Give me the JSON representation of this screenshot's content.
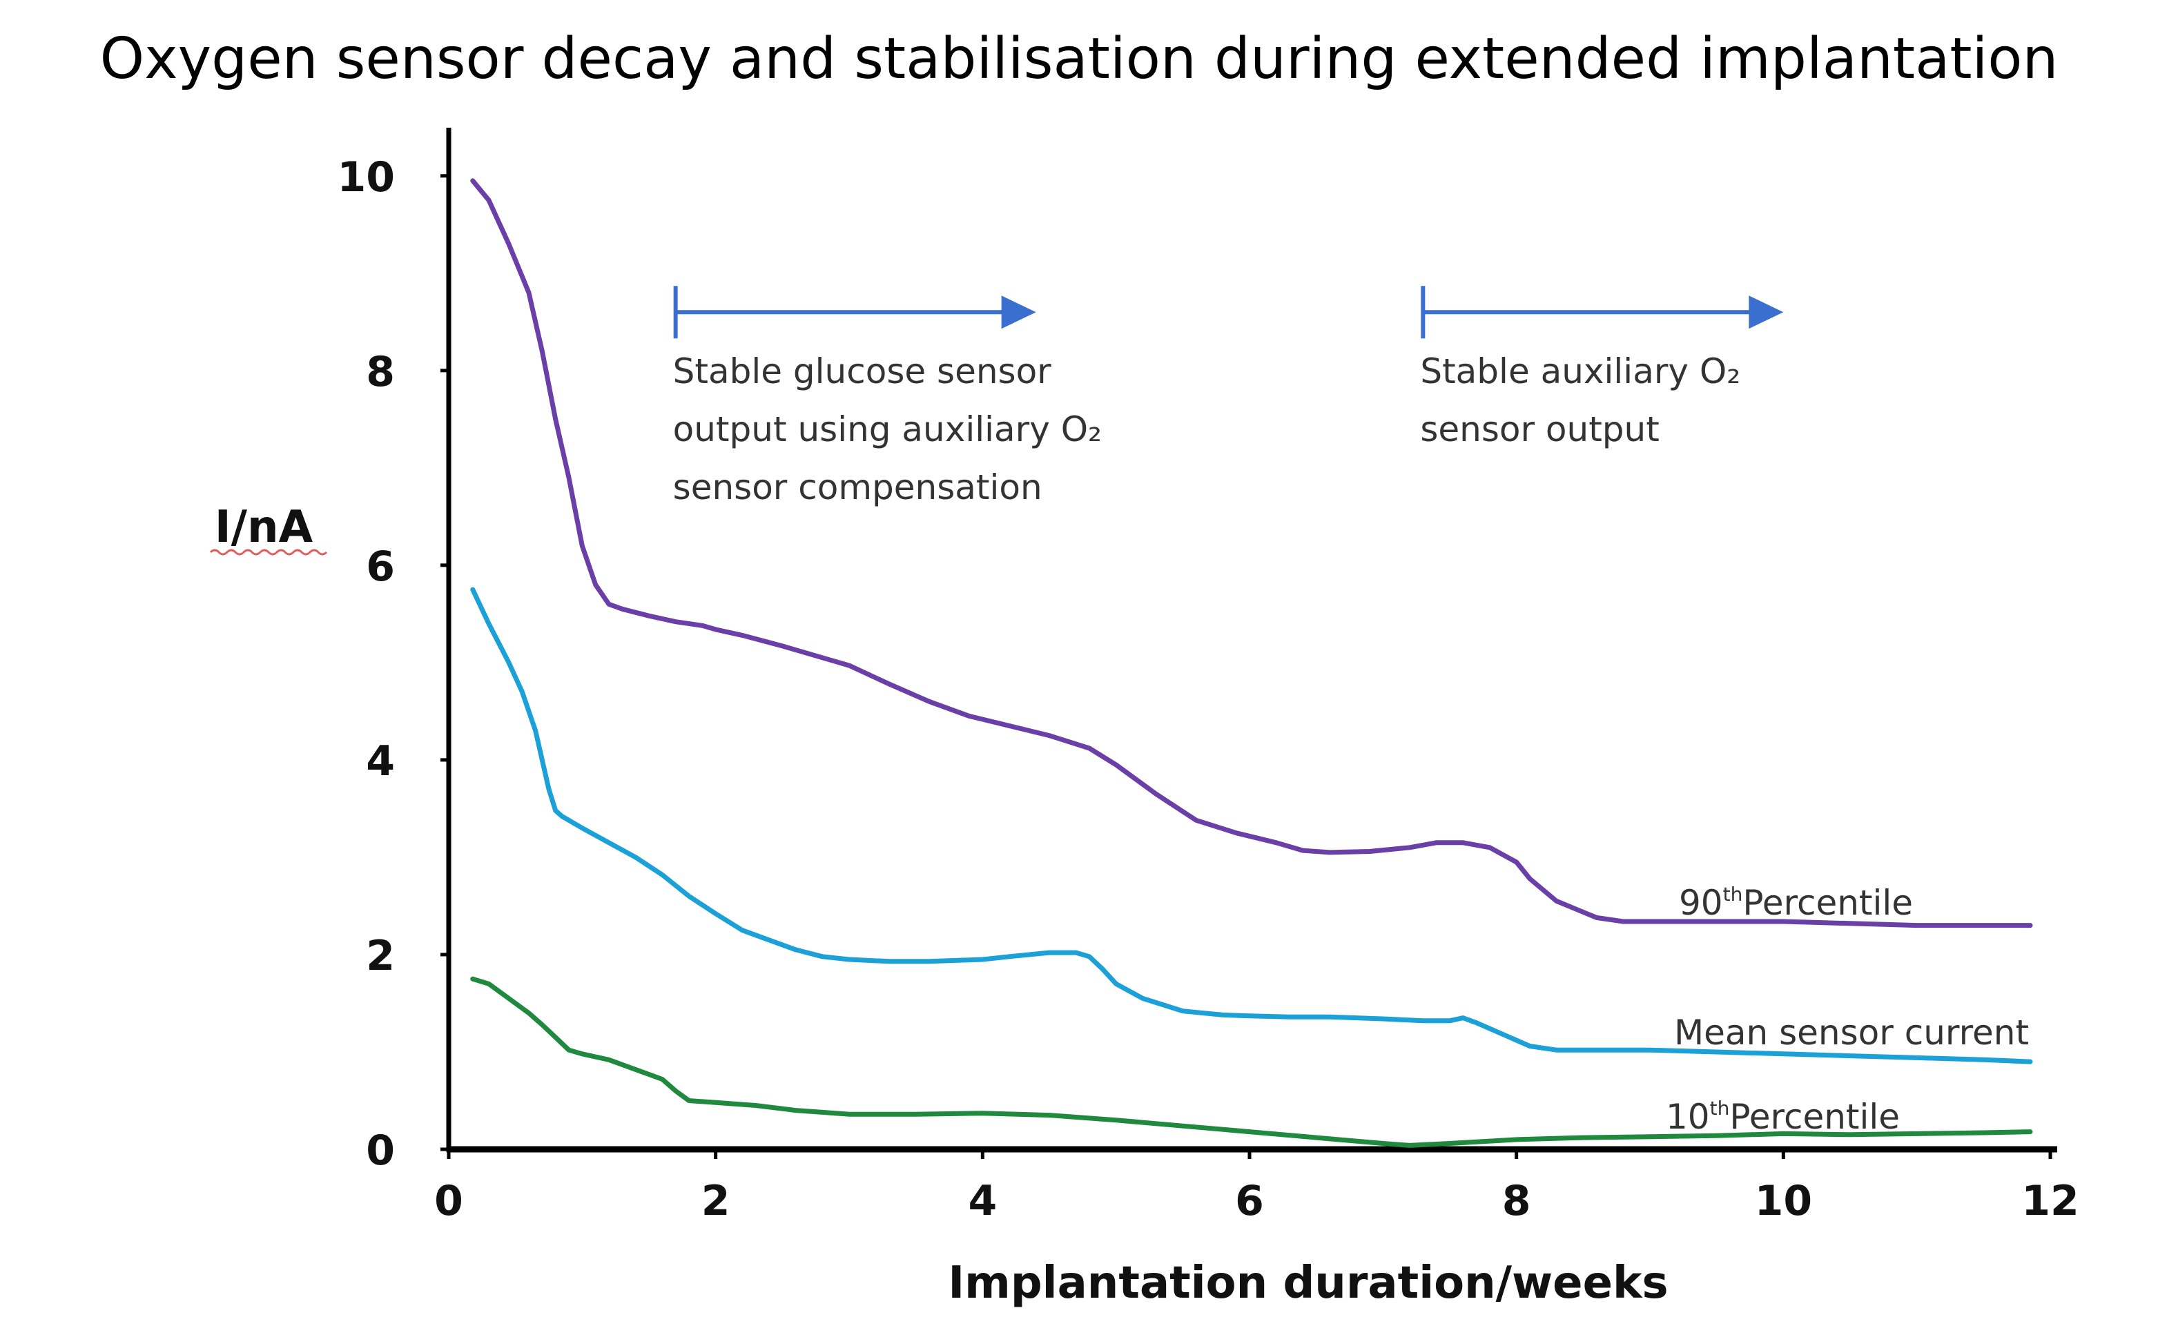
{
  "chart_data": {
    "type": "line",
    "title": "Oxygen sensor decay and stabilisation during extended implantation",
    "xlabel": "Implantation duration/weeks",
    "ylabel": "I/nA",
    "xlim": [
      0,
      12
    ],
    "ylim": [
      0,
      10.5
    ],
    "x_ticks": [
      "0",
      "2",
      "4",
      "6",
      "8",
      "10",
      "12"
    ],
    "y_ticks": [
      "0",
      "2",
      "4",
      "6",
      "8",
      "10"
    ],
    "grid": false,
    "legend": "none",
    "series": [
      {
        "name": "90th Percentile",
        "label_main": "90",
        "label_sup": "th",
        "label_rest": "Percentile",
        "color": "#6a3fa8",
        "x": [
          0.18,
          0.3,
          0.45,
          0.6,
          0.7,
          0.8,
          0.9,
          1.0,
          1.1,
          1.2,
          1.3,
          1.5,
          1.7,
          1.9,
          2.0,
          2.2,
          2.5,
          2.8,
          3.0,
          3.3,
          3.6,
          3.9,
          4.2,
          4.5,
          4.8,
          5.0,
          5.3,
          5.6,
          5.9,
          6.2,
          6.4,
          6.6,
          6.9,
          7.2,
          7.4,
          7.6,
          7.8,
          8.0,
          8.1,
          8.3,
          8.6,
          8.8,
          9.2,
          9.6,
          10.0,
          10.5,
          11.0,
          11.5,
          11.85
        ],
        "y": [
          9.95,
          9.75,
          9.3,
          8.8,
          8.2,
          7.5,
          6.9,
          6.2,
          5.8,
          5.6,
          5.55,
          5.48,
          5.42,
          5.38,
          5.34,
          5.28,
          5.17,
          5.05,
          4.97,
          4.78,
          4.6,
          4.45,
          4.35,
          4.25,
          4.12,
          3.95,
          3.65,
          3.38,
          3.25,
          3.15,
          3.07,
          3.05,
          3.06,
          3.1,
          3.15,
          3.15,
          3.1,
          2.95,
          2.78,
          2.55,
          2.38,
          2.34,
          2.34,
          2.34,
          2.34,
          2.32,
          2.3,
          2.3,
          2.3
        ]
      },
      {
        "name": "Mean sensor current",
        "label_main": "Mean sensor current",
        "label_sup": "",
        "label_rest": "",
        "color": "#1ba1d8",
        "x": [
          0.18,
          0.3,
          0.45,
          0.55,
          0.65,
          0.7,
          0.75,
          0.8,
          0.85,
          0.9,
          1.0,
          1.2,
          1.4,
          1.6,
          1.8,
          2.0,
          2.2,
          2.4,
          2.6,
          2.8,
          3.0,
          3.3,
          3.6,
          4.0,
          4.2,
          4.5,
          4.7,
          4.8,
          4.9,
          5.0,
          5.2,
          5.5,
          5.8,
          6.0,
          6.3,
          6.6,
          7.0,
          7.3,
          7.5,
          7.6,
          7.7,
          7.9,
          8.1,
          8.3,
          8.6,
          9.0,
          9.5,
          10.0,
          10.5,
          11.0,
          11.5,
          11.85
        ],
        "y": [
          5.75,
          5.4,
          5.0,
          4.7,
          4.3,
          4.0,
          3.7,
          3.48,
          3.42,
          3.38,
          3.3,
          3.15,
          3.0,
          2.82,
          2.6,
          2.42,
          2.25,
          2.15,
          2.05,
          1.98,
          1.95,
          1.93,
          1.93,
          1.95,
          1.98,
          2.02,
          2.02,
          1.98,
          1.85,
          1.7,
          1.55,
          1.42,
          1.38,
          1.37,
          1.36,
          1.36,
          1.34,
          1.32,
          1.32,
          1.35,
          1.3,
          1.18,
          1.06,
          1.02,
          1.02,
          1.02,
          1.0,
          0.98,
          0.96,
          0.94,
          0.92,
          0.9
        ]
      },
      {
        "name": "10th Percentile",
        "label_main": "10",
        "label_sup": "th",
        "label_rest": "Percentile",
        "color": "#1f8a3e",
        "x": [
          0.18,
          0.3,
          0.45,
          0.6,
          0.7,
          0.8,
          0.9,
          1.0,
          1.2,
          1.4,
          1.6,
          1.7,
          1.8,
          2.0,
          2.3,
          2.6,
          2.8,
          3.0,
          3.5,
          4.0,
          4.5,
          5.0,
          5.5,
          6.0,
          6.5,
          7.0,
          7.2,
          7.5,
          8.0,
          8.5,
          9.0,
          9.5,
          10.0,
          10.5,
          11.0,
          11.5,
          11.85
        ],
        "y": [
          1.75,
          1.7,
          1.55,
          1.4,
          1.28,
          1.15,
          1.02,
          0.98,
          0.92,
          0.82,
          0.72,
          0.6,
          0.5,
          0.48,
          0.45,
          0.4,
          0.38,
          0.36,
          0.36,
          0.37,
          0.35,
          0.3,
          0.24,
          0.18,
          0.12,
          0.06,
          0.04,
          0.06,
          0.1,
          0.12,
          0.13,
          0.14,
          0.16,
          0.15,
          0.16,
          0.17,
          0.18
        ]
      }
    ],
    "annotations": [
      {
        "lines": [
          "Stable glucose sensor",
          "output using auxiliary O₂",
          "sensor compensation"
        ],
        "arrow_x": [
          1.7,
          4.4
        ],
        "arrow_y": 8.6
      },
      {
        "lines": [
          "Stable auxiliary O₂",
          "sensor output"
        ],
        "arrow_x": [
          7.3,
          10.0
        ],
        "arrow_y": 8.6
      }
    ],
    "annotation_color": "#3a6fd0"
  }
}
